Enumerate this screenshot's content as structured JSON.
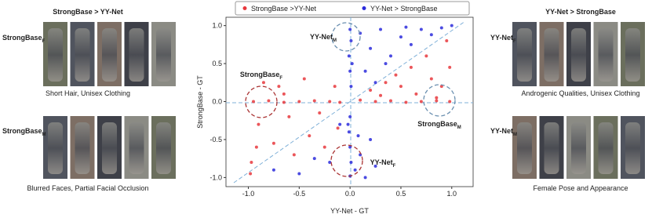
{
  "chart_data": {
    "type": "scatter",
    "xlabel": "YY-Net - GT",
    "ylabel": "StrongBase - GT",
    "xlim": [
      -1.22,
      1.21
    ],
    "ylim": [
      -1.12,
      1.11
    ],
    "xticks": [
      {
        "value": -1,
        "label": "-1.0"
      },
      {
        "value": -0.5,
        "label": "-0.5"
      },
      {
        "value": 0,
        "label": "0.0"
      },
      {
        "value": 0.5,
        "label": "0.5"
      },
      {
        "value": 1,
        "label": "1.0"
      }
    ],
    "yticks": [
      {
        "value": -1,
        "label": "-1.0"
      },
      {
        "value": -0.5,
        "label": "-0.5"
      },
      {
        "value": 0,
        "label": "0.0"
      },
      {
        "value": 0.5,
        "label": "0.5"
      },
      {
        "value": 1,
        "label": "1.0"
      }
    ],
    "series": [
      {
        "name": "StrongBase >YY-Net",
        "color": "#e8383d",
        "x": [
          -0.95,
          -0.8,
          -0.65,
          -0.5,
          -0.35,
          -0.2,
          -0.1,
          0.1,
          0.25,
          0.4,
          0.55,
          0.7,
          0.85,
          0.98,
          -0.9,
          -0.85,
          -0.75,
          -0.7,
          -0.6,
          -0.55,
          -0.45,
          -0.4,
          -0.3,
          -0.25,
          -0.15,
          -0.98,
          -0.97,
          -0.92,
          -0.12,
          -0.65,
          0.2,
          0.3,
          0.45,
          0.5,
          0.6,
          0.65,
          0.75,
          0.8,
          0.9,
          0.95,
          0.98,
          0.35,
          0.85
        ],
        "values": [
          0.0,
          0.01,
          -0.01,
          0.0,
          0.01,
          0.0,
          -0.01,
          0.02,
          0.0,
          0.01,
          -0.01,
          0.0,
          0.01,
          0.0,
          -0.3,
          0.25,
          -0.55,
          0.2,
          -0.2,
          -0.7,
          0.3,
          -0.45,
          -0.15,
          -0.6,
          0.2,
          -0.95,
          -0.8,
          -0.6,
          -0.35,
          0.1,
          0.15,
          0.08,
          0.35,
          0.2,
          0.45,
          0.1,
          0.6,
          0.3,
          0.2,
          0.8,
          0.45,
          0.25,
          0.05
        ]
      },
      {
        "name": "YY-Net > StrongBase",
        "color": "#2b2bdc",
        "x": [
          0.0,
          0.01,
          -0.01,
          0.0,
          0.01,
          0.0,
          -0.01,
          0.0,
          0.01,
          0.0,
          0.02,
          -0.02,
          0.1,
          0.2,
          0.3,
          0.4,
          0.5,
          0.6,
          0.7,
          0.8,
          0.9,
          1.0,
          0.15,
          0.35,
          0.55,
          0.25,
          0.05,
          0.1,
          0.15,
          0.2,
          0.25,
          0.08,
          -0.2,
          -0.5,
          -0.75,
          -0.1,
          -0.35
        ],
        "values": [
          0.95,
          0.8,
          0.6,
          0.4,
          0.2,
          -0.2,
          -0.4,
          -0.6,
          -0.8,
          -0.98,
          0.5,
          -0.3,
          0.9,
          0.7,
          0.95,
          0.6,
          0.85,
          0.75,
          0.95,
          0.88,
          0.97,
          1.0,
          0.4,
          0.5,
          0.98,
          0.25,
          -0.9,
          -0.7,
          -1.0,
          -0.5,
          -0.85,
          -0.45,
          -0.8,
          -0.95,
          -0.9,
          -0.3,
          -0.75
        ]
      }
    ],
    "annotations": [
      {
        "text": "YY-Net",
        "sub": "M"
      },
      {
        "text": "StrongBase",
        "sub": "F"
      },
      {
        "text": "StrongBase",
        "sub": "M"
      },
      {
        "text": "YY-Net",
        "sub": "F"
      }
    ]
  },
  "panels": [
    {
      "title": "StrongBase > YY-Net",
      "rows": [
        {
          "label": "StrongBase",
          "sub": "F",
          "caption": "Short Hair, Unisex Clothing"
        },
        {
          "label": "StrongBase",
          "sub": "M",
          "caption": "Blurred Faces, Partial Facial Occlusion"
        }
      ]
    },
    {
      "title": "YY-Net > StrongBase",
      "rows": [
        {
          "label": "YY-Net",
          "sub": "F",
          "caption": "Androgenic Qualities, Unisex Clothing"
        },
        {
          "label": "YY-Net",
          "sub": "M",
          "caption": "Female Pose and Appearance"
        }
      ]
    }
  ]
}
